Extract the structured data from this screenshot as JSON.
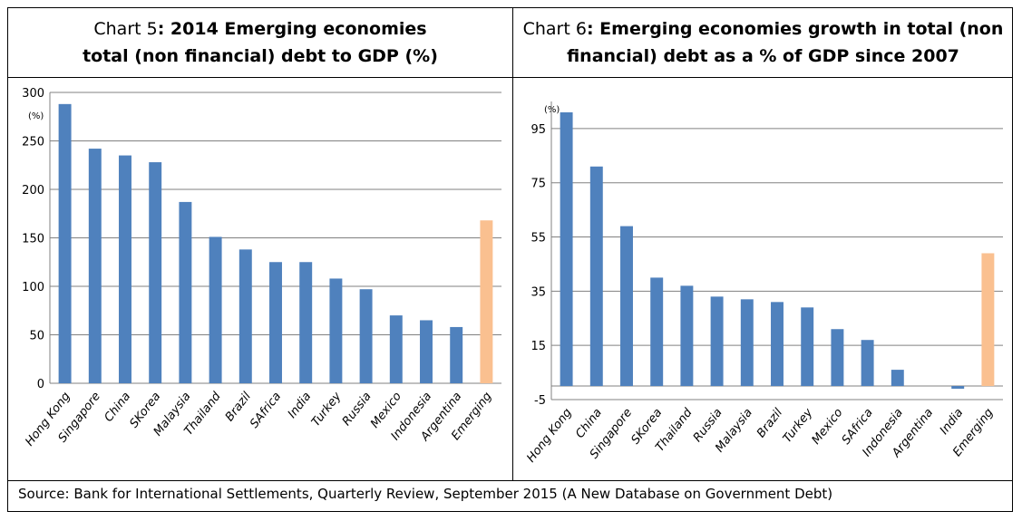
{
  "chart_data": [
    {
      "type": "bar",
      "title_prefix": "Chart 5",
      "title_bold": ": 2014 Emerging economies",
      "title_line2": "total (non financial) debt to GDP (%)",
      "unit_label": "(%)",
      "ylim": [
        0,
        300
      ],
      "yticks": [
        0,
        50,
        100,
        150,
        200,
        250,
        300
      ],
      "categories": [
        "Hong Kong",
        "Singapore",
        "China",
        "SKorea",
        "Malaysia",
        "Thailand",
        "Brazil",
        "SAfrica",
        "India",
        "Turkey",
        "Russia",
        "Mexico",
        "Indonesia",
        "Argentina",
        "Emerging"
      ],
      "values": [
        288,
        242,
        235,
        228,
        187,
        151,
        138,
        125,
        125,
        108,
        97,
        70,
        65,
        58,
        168
      ],
      "grid": true
    },
    {
      "type": "bar",
      "title_prefix": "Chart 6",
      "title_bold": ": Emerging economies growth in total (non",
      "title_line2": "financial) debt as a % of GDP since 2007",
      "unit_label": "(%)",
      "ylim": [
        -5,
        105
      ],
      "yticks": [
        -5,
        15,
        35,
        55,
        75,
        95
      ],
      "categories": [
        "Hong Kong",
        "China",
        "Singapore",
        "SKorea",
        "Thailand",
        "Russia",
        "Malaysia",
        "Brazil",
        "Turkey",
        "Mexico",
        "SAfrica",
        "Indonesia",
        "Argentina",
        "India",
        "Emerging"
      ],
      "values": [
        101,
        81,
        59,
        40,
        37,
        33,
        32,
        31,
        29,
        21,
        17,
        6,
        0,
        -1,
        49
      ],
      "grid": true
    }
  ],
  "colors": {
    "bar": "#4F81BD",
    "highlight": "#FAC090",
    "grid": "#808080",
    "axis": "#808080"
  },
  "source": "Source: Bank for International Settlements, Quarterly Review, September 2015 (A New Database on Government Debt)"
}
